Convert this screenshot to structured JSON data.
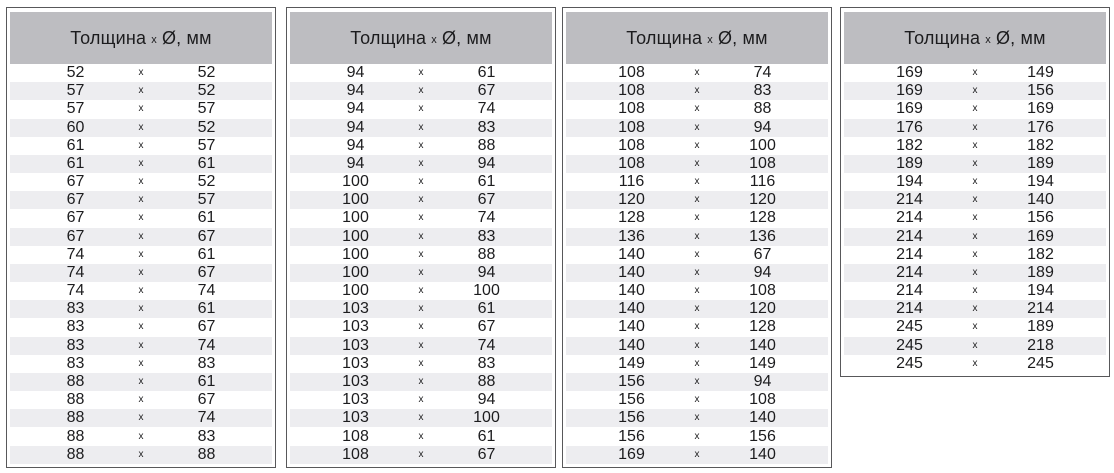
{
  "colors": {
    "header_bg": "#bdbdc1",
    "row_alt_bg": "#ededf0",
    "border": "#58585a",
    "text": "#1c1c1e"
  },
  "header": {
    "word": "Толщина",
    "x": "x",
    "unit": "Ø, мм"
  },
  "row_separator": "x",
  "tables": [
    {
      "rows": [
        [
          "52",
          "52"
        ],
        [
          "57",
          "52"
        ],
        [
          "57",
          "57"
        ],
        [
          "60",
          "52"
        ],
        [
          "61",
          "57"
        ],
        [
          "61",
          "61"
        ],
        [
          "67",
          "52"
        ],
        [
          "67",
          "57"
        ],
        [
          "67",
          "61"
        ],
        [
          "67",
          "67"
        ],
        [
          "74",
          "61"
        ],
        [
          "74",
          "67"
        ],
        [
          "74",
          "74"
        ],
        [
          "83",
          "61"
        ],
        [
          "83",
          "67"
        ],
        [
          "83",
          "74"
        ],
        [
          "83",
          "83"
        ],
        [
          "88",
          "61"
        ],
        [
          "88",
          "67"
        ],
        [
          "88",
          "74"
        ],
        [
          "88",
          "83"
        ],
        [
          "88",
          "88"
        ]
      ]
    },
    {
      "rows": [
        [
          "94",
          "61"
        ],
        [
          "94",
          "67"
        ],
        [
          "94",
          "74"
        ],
        [
          "94",
          "83"
        ],
        [
          "94",
          "88"
        ],
        [
          "94",
          "94"
        ],
        [
          "100",
          "61"
        ],
        [
          "100",
          "67"
        ],
        [
          "100",
          "74"
        ],
        [
          "100",
          "83"
        ],
        [
          "100",
          "88"
        ],
        [
          "100",
          "94"
        ],
        [
          "100",
          "100"
        ],
        [
          "103",
          "61"
        ],
        [
          "103",
          "67"
        ],
        [
          "103",
          "74"
        ],
        [
          "103",
          "83"
        ],
        [
          "103",
          "88"
        ],
        [
          "103",
          "94"
        ],
        [
          "103",
          "100"
        ],
        [
          "108",
          "61"
        ],
        [
          "108",
          "67"
        ]
      ]
    },
    {
      "rows": [
        [
          "108",
          "74"
        ],
        [
          "108",
          "83"
        ],
        [
          "108",
          "88"
        ],
        [
          "108",
          "94"
        ],
        [
          "108",
          "100"
        ],
        [
          "108",
          "108"
        ],
        [
          "116",
          "116"
        ],
        [
          "120",
          "120"
        ],
        [
          "128",
          "128"
        ],
        [
          "136",
          "136"
        ],
        [
          "140",
          "67"
        ],
        [
          "140",
          "94"
        ],
        [
          "140",
          "108"
        ],
        [
          "140",
          "120"
        ],
        [
          "140",
          "128"
        ],
        [
          "140",
          "140"
        ],
        [
          "149",
          "149"
        ],
        [
          "156",
          "94"
        ],
        [
          "156",
          "108"
        ],
        [
          "156",
          "140"
        ],
        [
          "156",
          "156"
        ],
        [
          "169",
          "140"
        ]
      ]
    },
    {
      "rows": [
        [
          "169",
          "149"
        ],
        [
          "169",
          "156"
        ],
        [
          "169",
          "169"
        ],
        [
          "176",
          "176"
        ],
        [
          "182",
          "182"
        ],
        [
          "189",
          "189"
        ],
        [
          "194",
          "194"
        ],
        [
          "214",
          "140"
        ],
        [
          "214",
          "156"
        ],
        [
          "214",
          "169"
        ],
        [
          "214",
          "182"
        ],
        [
          "214",
          "189"
        ],
        [
          "214",
          "194"
        ],
        [
          "214",
          "214"
        ],
        [
          "245",
          "189"
        ],
        [
          "245",
          "218"
        ],
        [
          "245",
          "245"
        ]
      ]
    }
  ]
}
